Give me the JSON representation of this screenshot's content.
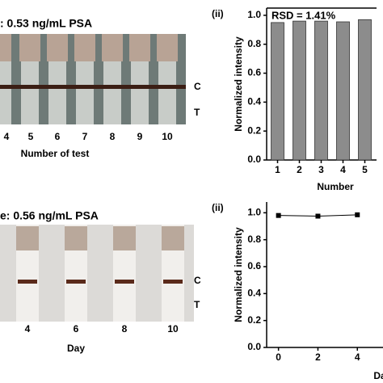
{
  "photos": [
    {
      "title": ": 0.53 ng/mL PSA",
      "line_labels": [
        "C",
        "T"
      ],
      "strip_labels": [
        "4",
        "5",
        "6",
        "7",
        "8",
        "9",
        "10"
      ],
      "axis_label": "Number of test"
    },
    {
      "title": "e: 0.56 ng/mL PSA",
      "line_labels": [
        "C",
        "T"
      ],
      "strip_labels": [
        "4",
        "6",
        "8",
        "10"
      ],
      "axis_label": "Day"
    }
  ],
  "chart_data": [
    {
      "type": "bar",
      "panel_label": "(ii)",
      "annotation": "RSD = 1.41%",
      "ylabel": "Normalized intensity",
      "xlabel": "Number",
      "categories": [
        "1",
        "2",
        "3",
        "4",
        "5"
      ],
      "values": [
        0.95,
        0.96,
        0.96,
        0.955,
        0.97
      ],
      "color": "#8c8c8c",
      "ylim": [
        0,
        1.05
      ],
      "yticks": [
        {
          "value": 0,
          "label": "0.0"
        },
        0.2,
        0.4,
        0.6,
        0.8,
        {
          "value": 1,
          "label": "1.0"
        }
      ]
    },
    {
      "type": "line",
      "panel_label": "(ii)",
      "ylabel": "Normalized intensity",
      "xlabel": "Da",
      "x": [
        0,
        2,
        4
      ],
      "values": [
        0.98,
        0.975,
        0.985
      ],
      "color": "#000000",
      "xlim": [
        -0.6,
        5.3
      ],
      "xticks": [
        0,
        2,
        4
      ],
      "ylim": [
        0,
        1.08
      ],
      "yticks": [
        {
          "value": 0,
          "label": "0.0"
        },
        0.2,
        0.4,
        0.6,
        0.8,
        {
          "value": 1,
          "label": "1.0"
        }
      ]
    }
  ]
}
